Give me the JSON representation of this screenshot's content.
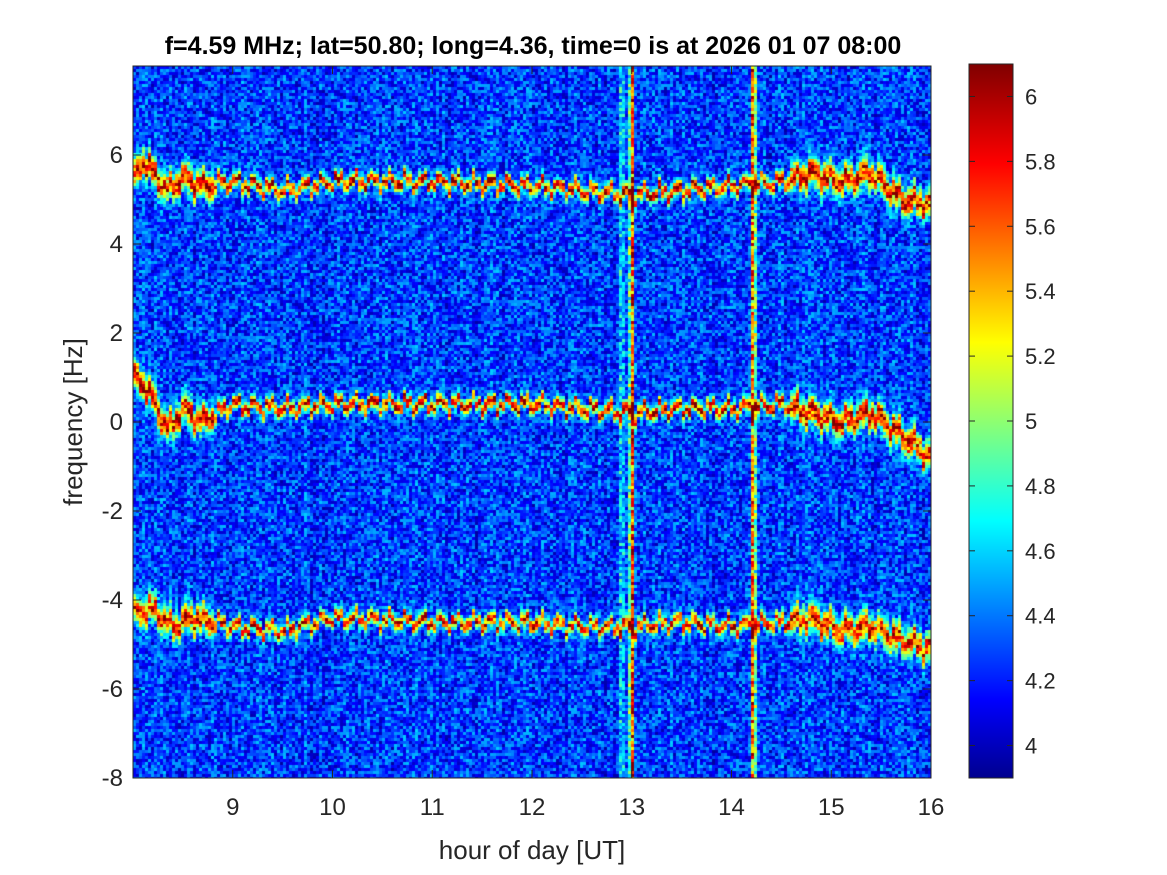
{
  "chart_data": {
    "type": "heatmap",
    "title": "f=4.59 MHz;  lat=50.80; long=4.36, time=0 is at 2026 01 07 08:00",
    "xlabel": "hour of day [UT]",
    "ylabel": "frequency [Hz]",
    "xlim": [
      8,
      16
    ],
    "ylim": [
      -8,
      8
    ],
    "x_ticks": [
      9,
      10,
      11,
      12,
      13,
      14,
      15,
      16
    ],
    "y_ticks": [
      -8,
      -6,
      -4,
      -2,
      0,
      2,
      4,
      6
    ],
    "colormap": "jet",
    "colorbar": {
      "clim": [
        3.9,
        6.1
      ],
      "ticks": [
        4,
        4.2,
        4.4,
        4.6,
        4.8,
        5,
        5.2,
        5.4,
        5.6,
        5.8,
        6
      ]
    },
    "background_level": 4.3,
    "traces": [
      {
        "hours": [
          8.0,
          8.1,
          8.2,
          8.35,
          8.5,
          8.7,
          9.0,
          9.5,
          10.0,
          11.0,
          12.0,
          12.5,
          13.0,
          13.5,
          14.0,
          14.5,
          14.8,
          15.1,
          15.4,
          15.7,
          16.0
        ],
        "freq_hz": [
          5.4,
          5.9,
          5.6,
          5.2,
          5.5,
          5.3,
          5.4,
          5.2,
          5.4,
          5.4,
          5.3,
          5.2,
          5.1,
          5.2,
          5.3,
          5.4,
          5.6,
          5.4,
          5.6,
          5.0,
          4.9
        ],
        "peak_level": 6.0
      },
      {
        "hours": [
          8.0,
          8.1,
          8.2,
          8.35,
          8.5,
          8.7,
          9.0,
          9.5,
          10.0,
          11.0,
          12.0,
          12.5,
          13.0,
          13.5,
          14.0,
          14.5,
          14.8,
          15.1,
          15.4,
          15.7,
          16.0
        ],
        "freq_hz": [
          1.0,
          0.9,
          0.5,
          -0.2,
          0.3,
          0.0,
          0.4,
          0.3,
          0.4,
          0.4,
          0.4,
          0.3,
          0.2,
          0.3,
          0.3,
          0.4,
          0.2,
          0.0,
          0.2,
          -0.3,
          -0.8
        ],
        "peak_level": 6.0
      },
      {
        "hours": [
          8.0,
          8.2,
          8.4,
          8.6,
          9.0,
          9.5,
          10.0,
          11.0,
          12.0,
          12.5,
          13.0,
          13.5,
          14.0,
          14.5,
          14.8,
          15.1,
          15.4,
          15.7,
          16.0
        ],
        "freq_hz": [
          -4.3,
          -4.2,
          -4.6,
          -4.4,
          -4.6,
          -4.7,
          -4.4,
          -4.5,
          -4.5,
          -4.6,
          -4.6,
          -4.5,
          -4.6,
          -4.5,
          -4.4,
          -4.7,
          -4.6,
          -4.9,
          -5.1
        ],
        "peak_level": 5.9
      }
    ],
    "vertical_bursts": [
      {
        "hour": 12.9,
        "level": 4.9
      },
      {
        "hour": 13.0,
        "level": 6.0
      },
      {
        "hour": 14.22,
        "level": 5.9
      }
    ]
  }
}
